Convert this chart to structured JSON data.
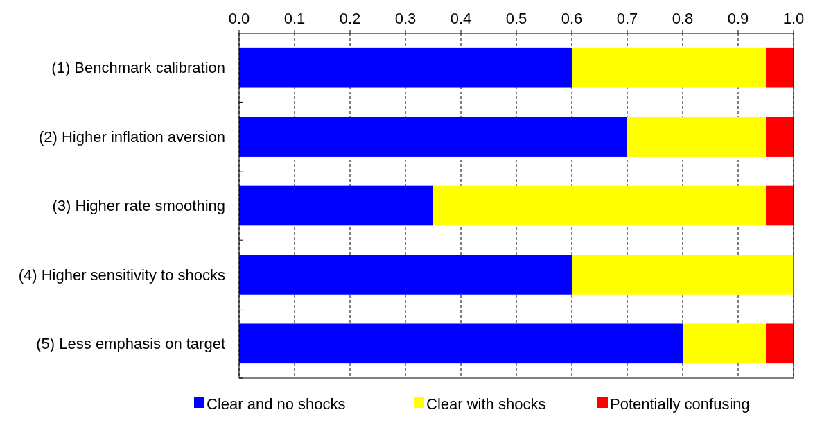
{
  "chart_data": {
    "type": "bar",
    "orientation": "horizontal",
    "stacked": true,
    "categories": [
      "(1) Benchmark calibration",
      "(2) Higher inflation aversion",
      "(3) Higher rate smoothing",
      "(4) Higher sensitivity to shocks",
      "(5) Less emphasis on target"
    ],
    "series": [
      {
        "name": "Clear and no shocks",
        "color": "#0000ff",
        "values": [
          0.6,
          0.7,
          0.35,
          0.6,
          0.8
        ]
      },
      {
        "name": "Clear with shocks",
        "color": "#ffff00",
        "values": [
          0.35,
          0.25,
          0.6,
          0.4,
          0.15
        ]
      },
      {
        "name": "Potentially confusing",
        "color": "#ff0000",
        "values": [
          0.05,
          0.05,
          0.05,
          0,
          0.05
        ]
      }
    ],
    "xlim": [
      0,
      1
    ],
    "xticks": [
      {
        "value": 0,
        "label": "0.0"
      },
      {
        "value": 0.1,
        "label": "0.1"
      },
      {
        "value": 0.2,
        "label": "0.2"
      },
      {
        "value": 0.3,
        "label": "0.3"
      },
      {
        "value": 0.4,
        "label": "0.4"
      },
      {
        "value": 0.5,
        "label": "0.5"
      },
      {
        "value": 0.6,
        "label": "0.6"
      },
      {
        "value": 0.7,
        "label": "0.7"
      },
      {
        "value": 0.8,
        "label": "0.8"
      },
      {
        "value": 0.9,
        "label": "0.9"
      },
      {
        "value": 1,
        "label": "1.0"
      }
    ],
    "grid": "x",
    "legend": "bottom"
  }
}
